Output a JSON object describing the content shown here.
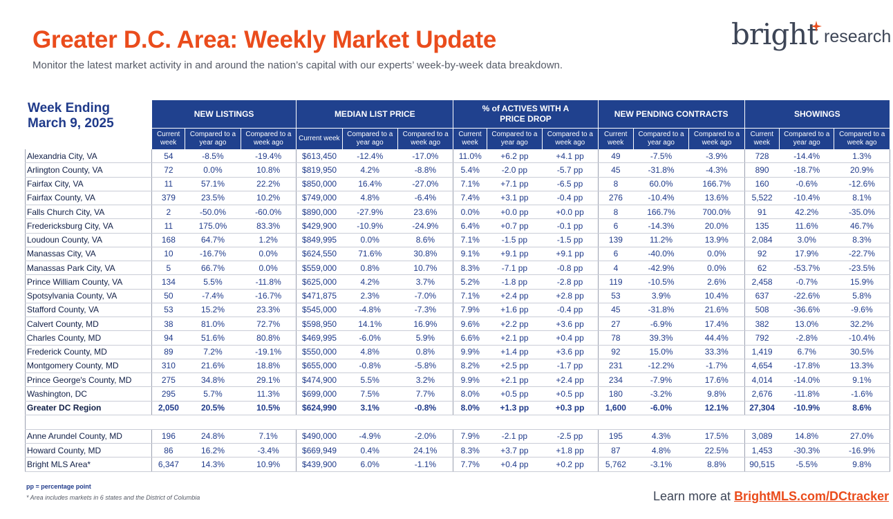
{
  "header": {
    "title": "Greater D.C. Area: Weekly Market Update",
    "subtitle": "Monitor the latest market activity in and around the nation’s capital with our experts’ week-by-week data breakdown."
  },
  "logo": {
    "brand": "bright",
    "suffix": "research"
  },
  "week": {
    "line1": "Week Ending",
    "line2": "March 9, 2025"
  },
  "groups": [
    "NEW LISTINGS",
    "MEDIAN LIST PRICE",
    "% of ACTIVES WITH A PRICE DROP",
    "NEW PENDING CONTRACTS",
    "SHOWINGS"
  ],
  "subheaders": [
    "Current week",
    "Compared to a year ago",
    "Compared to a week ago"
  ],
  "rows": [
    [
      "Alexandria City, VA",
      "54",
      "-8.5%",
      "-19.4%",
      "$613,450",
      "-12.4%",
      "-17.0%",
      "11.0%",
      "+6.2 pp",
      "+4.1 pp",
      "49",
      "-7.5%",
      "-3.9%",
      "728",
      "-14.4%",
      "1.3%"
    ],
    [
      "Arlington County, VA",
      "72",
      "0.0%",
      "10.8%",
      "$819,950",
      "4.2%",
      "-8.8%",
      "5.4%",
      "-2.0 pp",
      "-5.7 pp",
      "45",
      "-31.8%",
      "-4.3%",
      "890",
      "-18.7%",
      "20.9%"
    ],
    [
      "Fairfax City, VA",
      "11",
      "57.1%",
      "22.2%",
      "$850,000",
      "16.4%",
      "-27.0%",
      "7.1%",
      "+7.1 pp",
      "-6.5 pp",
      "8",
      "60.0%",
      "166.7%",
      "160",
      "-0.6%",
      "-12.6%"
    ],
    [
      "Fairfax County, VA",
      "379",
      "23.5%",
      "10.2%",
      "$749,000",
      "4.8%",
      "-6.4%",
      "7.4%",
      "+3.1 pp",
      "-0.4 pp",
      "276",
      "-10.4%",
      "13.6%",
      "5,522",
      "-10.4%",
      "8.1%"
    ],
    [
      "Falls Church City, VA",
      "2",
      "-50.0%",
      "-60.0%",
      "$890,000",
      "-27.9%",
      "23.6%",
      "0.0%",
      "+0.0 pp",
      "+0.0 pp",
      "8",
      "166.7%",
      "700.0%",
      "91",
      "42.2%",
      "-35.0%"
    ],
    [
      "Fredericksburg City, VA",
      "11",
      "175.0%",
      "83.3%",
      "$429,900",
      "-10.9%",
      "-24.9%",
      "6.4%",
      "+0.7 pp",
      "-0.1 pp",
      "6",
      "-14.3%",
      "20.0%",
      "135",
      "11.6%",
      "46.7%"
    ],
    [
      "Loudoun County, VA",
      "168",
      "64.7%",
      "1.2%",
      "$849,995",
      "0.0%",
      "8.6%",
      "7.1%",
      "-1.5 pp",
      "-1.5 pp",
      "139",
      "11.2%",
      "13.9%",
      "2,084",
      "3.0%",
      "8.3%"
    ],
    [
      "Manassas City, VA",
      "10",
      "-16.7%",
      "0.0%",
      "$624,550",
      "71.6%",
      "30.8%",
      "9.1%",
      "+9.1 pp",
      "+9.1 pp",
      "6",
      "-40.0%",
      "0.0%",
      "92",
      "17.9%",
      "-22.7%"
    ],
    [
      "Manassas Park City, VA",
      "5",
      "66.7%",
      "0.0%",
      "$559,000",
      "0.8%",
      "10.7%",
      "8.3%",
      "-7.1 pp",
      "-0.8 pp",
      "4",
      "-42.9%",
      "0.0%",
      "62",
      "-53.7%",
      "-23.5%"
    ],
    [
      "Prince William County, VA",
      "134",
      "5.5%",
      "-11.8%",
      "$625,000",
      "4.2%",
      "3.7%",
      "5.2%",
      "-1.8 pp",
      "-2.8 pp",
      "119",
      "-10.5%",
      "2.6%",
      "2,458",
      "-0.7%",
      "15.9%"
    ],
    [
      "Spotsylvania County, VA",
      "50",
      "-7.4%",
      "-16.7%",
      "$471,875",
      "2.3%",
      "-7.0%",
      "7.1%",
      "+2.4 pp",
      "+2.8 pp",
      "53",
      "3.9%",
      "10.4%",
      "637",
      "-22.6%",
      "5.8%"
    ],
    [
      "Stafford County, VA",
      "53",
      "15.2%",
      "23.3%",
      "$545,000",
      "-4.8%",
      "-7.3%",
      "7.9%",
      "+1.6 pp",
      "-0.4 pp",
      "45",
      "-31.8%",
      "21.6%",
      "508",
      "-36.6%",
      "-9.6%"
    ],
    [
      "Calvert County, MD",
      "38",
      "81.0%",
      "72.7%",
      "$598,950",
      "14.1%",
      "16.9%",
      "9.6%",
      "+2.2 pp",
      "+3.6 pp",
      "27",
      "-6.9%",
      "17.4%",
      "382",
      "13.0%",
      "32.2%"
    ],
    [
      "Charles County, MD",
      "94",
      "51.6%",
      "80.8%",
      "$469,995",
      "-6.0%",
      "5.9%",
      "6.6%",
      "+2.1 pp",
      "+0.4 pp",
      "78",
      "39.3%",
      "44.4%",
      "792",
      "-2.8%",
      "-10.4%"
    ],
    [
      "Frederick County, MD",
      "89",
      "7.2%",
      "-19.1%",
      "$550,000",
      "4.8%",
      "0.8%",
      "9.9%",
      "+1.4 pp",
      "+3.6 pp",
      "92",
      "15.0%",
      "33.3%",
      "1,419",
      "6.7%",
      "30.5%"
    ],
    [
      "Montgomery County, MD",
      "310",
      "21.6%",
      "18.8%",
      "$655,000",
      "-0.8%",
      "-5.8%",
      "8.2%",
      "+2.5 pp",
      "-1.7 pp",
      "231",
      "-12.2%",
      "-1.7%",
      "4,654",
      "-17.8%",
      "13.3%"
    ],
    [
      "Prince George's County, MD",
      "275",
      "34.8%",
      "29.1%",
      "$474,900",
      "5.5%",
      "3.2%",
      "9.9%",
      "+2.1 pp",
      "+2.4 pp",
      "234",
      "-7.9%",
      "17.6%",
      "4,014",
      "-14.0%",
      "9.1%"
    ],
    [
      "Washington, DC",
      "295",
      "5.7%",
      "11.3%",
      "$699,000",
      "7.5%",
      "7.7%",
      "8.0%",
      "+0.5 pp",
      "+0.5 pp",
      "180",
      "-3.2%",
      "9.8%",
      "2,676",
      "-11.8%",
      "-1.6%"
    ]
  ],
  "total_row": [
    "Greater DC Region",
    "2,050",
    "20.5%",
    "10.5%",
    "$624,990",
    "3.1%",
    "-0.8%",
    "8.0%",
    "+1.3 pp",
    "+0.3 pp",
    "1,600",
    "-6.0%",
    "12.1%",
    "27,304",
    "-10.9%",
    "8.6%"
  ],
  "extra_rows": [
    [
      "Anne Arundel County, MD",
      "196",
      "24.8%",
      "7.1%",
      "$490,000",
      "-4.9%",
      "-2.0%",
      "7.9%",
      "-2.1 pp",
      "-2.5 pp",
      "195",
      "4.3%",
      "17.5%",
      "3,089",
      "14.8%",
      "27.0%"
    ],
    [
      "Howard County, MD",
      "86",
      "16.2%",
      "-3.4%",
      "$669,949",
      "0.4%",
      "24.1%",
      "8.3%",
      "+3.7 pp",
      "+1.8 pp",
      "87",
      "4.8%",
      "22.5%",
      "1,453",
      "-30.3%",
      "-16.9%"
    ],
    [
      "Bright MLS Area*",
      "6,347",
      "14.3%",
      "10.9%",
      "$439,900",
      "6.0%",
      "-1.1%",
      "7.7%",
      "+0.4 pp",
      "+0.2 pp",
      "5,762",
      "-3.1%",
      "8.8%",
      "90,515",
      "-5.5%",
      "9.8%"
    ]
  ],
  "footer": {
    "pp_note": "pp = percentage point",
    "area_note": "* Area includes markets in 6 states and the District of Columbia",
    "learn_prefix": "Learn more at ",
    "learn_link": "BrightMLS.com/DCtracker"
  },
  "colors": {
    "accent": "#ea4c1c",
    "header_blue": "#20418e",
    "text_blue": "#1f3a8a"
  }
}
